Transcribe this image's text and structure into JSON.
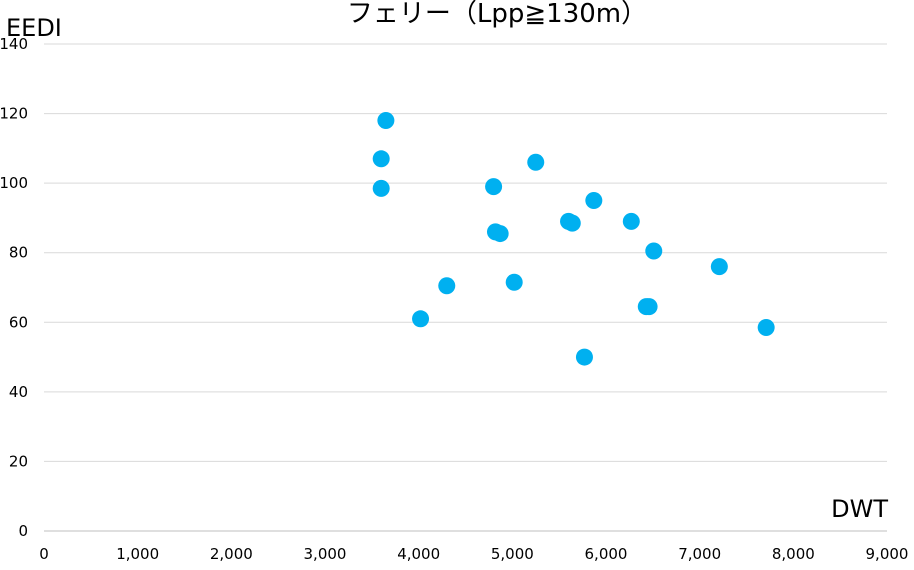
{
  "chart_data": {
    "type": "scatter",
    "title": "フェリー（Lpp≧130m）",
    "xlabel": "DWT",
    "ylabel": "EEDI",
    "xlim": [
      0,
      9000
    ],
    "ylim": [
      0,
      140
    ],
    "x_ticks": [
      "0",
      "1,000",
      "2,000",
      "3,000",
      "4,000",
      "5,000",
      "6,000",
      "7,000",
      "8,000",
      "9,000"
    ],
    "y_ticks": [
      "0",
      "20",
      "40",
      "60",
      "80",
      "100",
      "120",
      "140"
    ],
    "grid": true,
    "legend": "none",
    "color": "#00b0f0",
    "points": [
      {
        "x": 3600,
        "y": 98.5
      },
      {
        "x": 3600,
        "y": 107
      },
      {
        "x": 3650,
        "y": 118
      },
      {
        "x": 4020,
        "y": 61
      },
      {
        "x": 4300,
        "y": 70.5
      },
      {
        "x": 4800,
        "y": 99
      },
      {
        "x": 4820,
        "y": 86
      },
      {
        "x": 4870,
        "y": 85.5
      },
      {
        "x": 5020,
        "y": 71.5
      },
      {
        "x": 5250,
        "y": 106
      },
      {
        "x": 5600,
        "y": 89
      },
      {
        "x": 5640,
        "y": 88.5
      },
      {
        "x": 5770,
        "y": 50
      },
      {
        "x": 5870,
        "y": 95
      },
      {
        "x": 6270,
        "y": 89
      },
      {
        "x": 6430,
        "y": 64.5
      },
      {
        "x": 6460,
        "y": 64.5
      },
      {
        "x": 6510,
        "y": 80.5
      },
      {
        "x": 7210,
        "y": 76
      },
      {
        "x": 7710,
        "y": 58.5
      }
    ]
  }
}
